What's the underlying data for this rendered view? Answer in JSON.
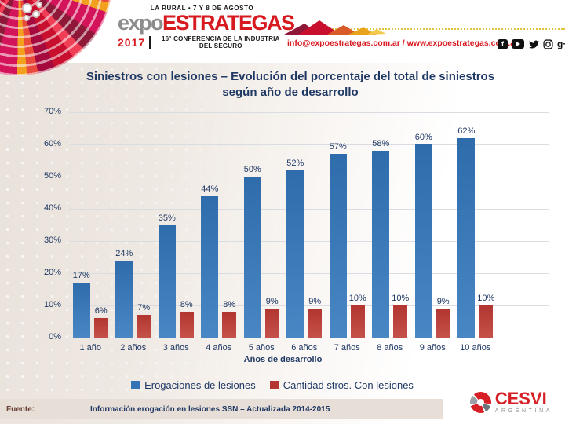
{
  "header": {
    "event_location": "LA RURAL • 7 Y 8 DE AGOSTO",
    "brand_expo": "expo",
    "brand_name": "ESTRATEGAS",
    "year": "2017",
    "conference": "16° CONFERENCIA DE LA INDUSTRIA DEL SEGURO",
    "contact": "info@expoestrategas.com.ar / www.expoestrategas.com.ar",
    "social_icons": [
      "facebook-icon",
      "youtube-icon",
      "twitter-icon",
      "instagram-icon",
      "google-plus-icon"
    ],
    "facebook_glyph": "f",
    "google_plus_glyph": "g+"
  },
  "chart_data": {
    "type": "bar",
    "title": "Siniestros con lesiones – Evolución del porcentaje del total de siniestros según año de desarrollo",
    "categories": [
      "1 año",
      "2 años",
      "3 años",
      "4 años",
      "5 años",
      "6 años",
      "7 años",
      "8 años",
      "9 años",
      "10 años"
    ],
    "series": [
      {
        "name": "Erogaciones de lesiones",
        "color": "#3474b6",
        "values": [
          17,
          24,
          35,
          44,
          50,
          52,
          57,
          58,
          60,
          62
        ]
      },
      {
        "name": "Cantidad stros. Con lesiones",
        "color": "#b53530",
        "values": [
          6,
          7,
          8,
          8,
          9,
          9,
          10,
          10,
          9,
          10
        ]
      }
    ],
    "xlabel": "Años de desarrollo",
    "ylabel": "",
    "ylim": [
      0,
      70
    ],
    "ytick_step": 10,
    "yticks": [
      "0%",
      "10%",
      "20%",
      "30%",
      "40%",
      "50%",
      "60%",
      "70%"
    ],
    "value_suffix": "%",
    "grid": true,
    "legend_position": "bottom"
  },
  "footer": {
    "source_label": "Fuente:",
    "source_text": "Información erogación en lesiones SSN – Actualizada 2014-2015"
  },
  "logo_cesvi": {
    "name": "CESVI",
    "subtitle": "ARGENTINA"
  },
  "colors": {
    "accent_red": "#d71920",
    "navy_text": "#1f3864",
    "bar_blue": "#3474b6",
    "bar_red": "#b53530",
    "background_beige": "#e9e1da",
    "footer_strip": "#e7dfd7",
    "dotted_line_yellow": "#e4c43e",
    "gridline": "#d9dde2"
  }
}
